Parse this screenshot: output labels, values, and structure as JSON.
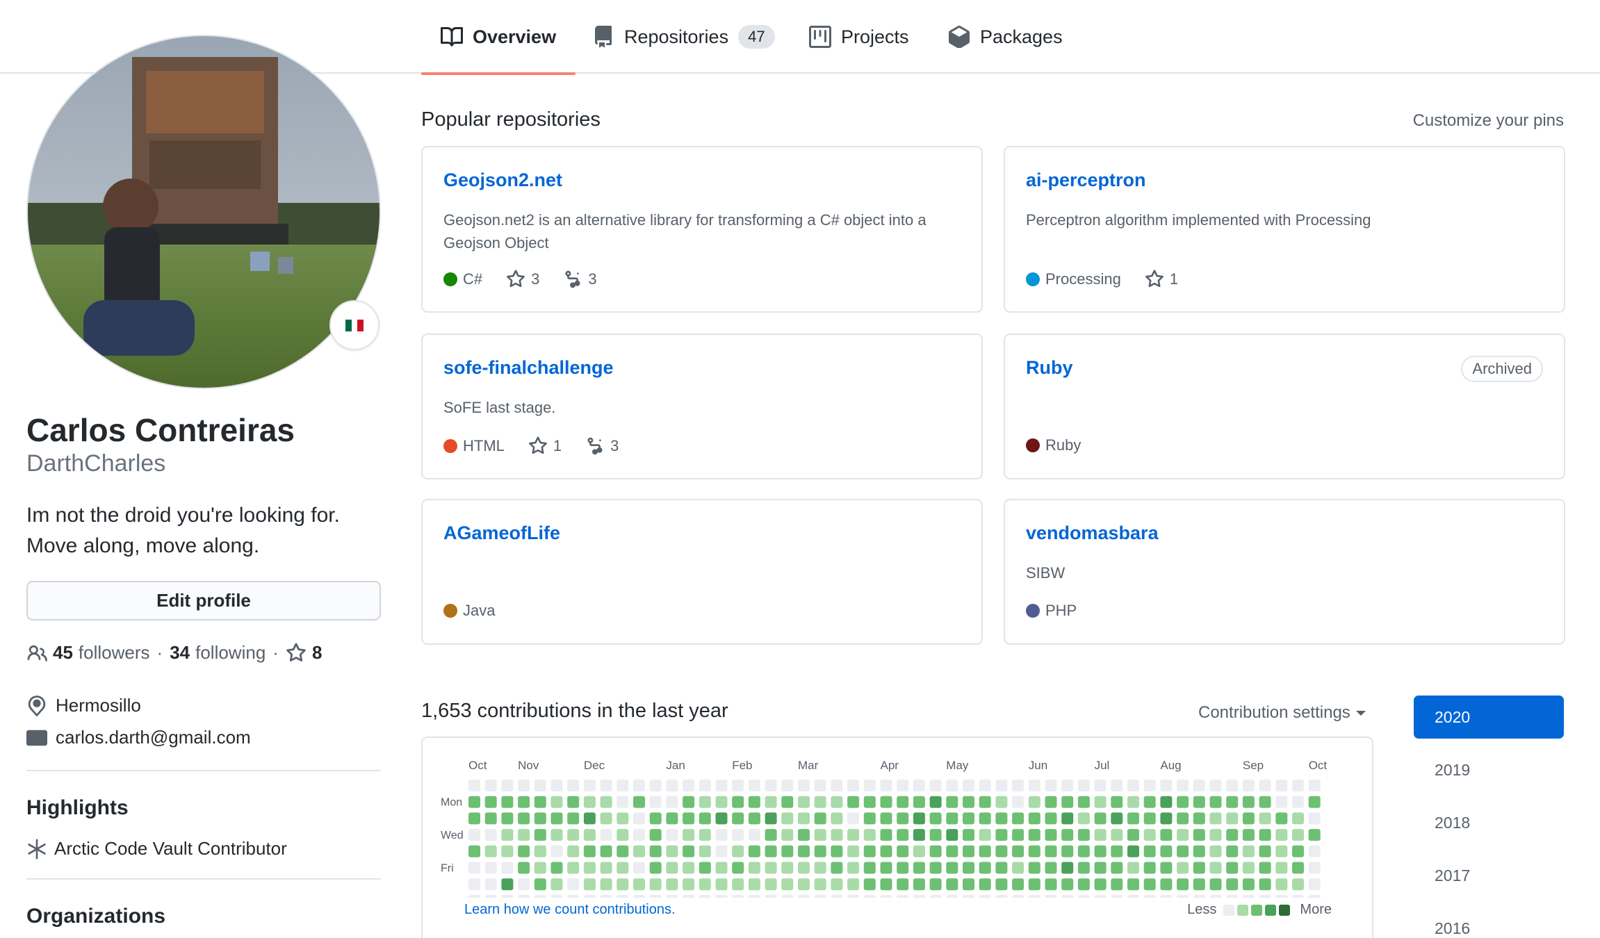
{
  "tabs": [
    {
      "label": "Overview",
      "icon": "book-icon",
      "selected": true
    },
    {
      "label": "Repositories",
      "icon": "repo-icon",
      "count": "47"
    },
    {
      "label": "Projects",
      "icon": "project-icon"
    },
    {
      "label": "Packages",
      "icon": "package-icon"
    }
  ],
  "profile": {
    "full_name": "Carlos Contreiras",
    "login": "DarthCharles",
    "bio_line1": "Im not the droid you're looking for.",
    "bio_line2": "Move along, move along.",
    "edit_label": "Edit profile",
    "followers_count": "45",
    "followers_label": "followers",
    "following_count": "34",
    "following_label": "following",
    "stars_count": "8",
    "location": "Hermosillo",
    "email": "carlos.darth@gmail.com",
    "highlights_heading": "Highlights",
    "highlight_item": "Arctic Code Vault Contributor",
    "organizations_heading": "Organizations",
    "flag_colors": [
      "#006847",
      "#ffffff",
      "#ce1126"
    ]
  },
  "popular": {
    "title": "Popular repositories",
    "customize_label": "Customize your pins",
    "repos": [
      {
        "name": "Geojson2.net",
        "description": "Geojson.net2 is an alternative library for transforming a C# object into a Geojson Object",
        "language": "C#",
        "lang_color": "#178600",
        "stars": "3",
        "forks": "3"
      },
      {
        "name": "ai-perceptron",
        "description": "Perceptron algorithm implemented with Processing",
        "language": "Processing",
        "lang_color": "#0096D8",
        "stars": "1"
      },
      {
        "name": "sofe-finalchallenge",
        "description": "SoFE last stage.",
        "language": "HTML",
        "lang_color": "#e34c26",
        "stars": "1",
        "forks": "3"
      },
      {
        "name": "Ruby",
        "badge": "Archived",
        "language": "Ruby",
        "lang_color": "#701516"
      },
      {
        "name": "AGameofLife",
        "language": "Java",
        "lang_color": "#b07219"
      },
      {
        "name": "vendomasbara",
        "description": "SIBW",
        "language": "PHP",
        "lang_color": "#4F5D95"
      }
    ]
  },
  "contributions": {
    "title": "1,653 contributions in the last year",
    "settings_label": "Contribution settings",
    "months": [
      "Oct",
      "Nov",
      "Dec",
      "Jan",
      "Feb",
      "Mar",
      "Apr",
      "May",
      "Jun",
      "Jul",
      "Aug",
      "Sep",
      "Oct"
    ],
    "day_labels": [
      "Mon",
      "Wed",
      "Fri"
    ],
    "learn_label": "Learn how we count contributions.",
    "less_label": "Less",
    "more_label": "More",
    "level_colors": [
      "#ebedf0",
      "#9be9a8",
      "#40c463",
      "#30a14e",
      "#216e39"
    ],
    "palette_in_screenshot": [
      "#ebedf0",
      "#a8dba8",
      "#6cc072",
      "#4aa159",
      "#2e6b37"
    ],
    "grid": [
      "0000000000000000000000000000000000000000000000000000",
      "2222212110200211221211122222322210122212123222222002",
      "2222222311022223223112102223222222223123223221121210",
      "0011211101020110002121111223232122222211212121222112",
      "2112101222121210122222212221222222222222322221212120",
      "0002121111021121211111212222222221223222122121212120",
      "0030210111111111111111112222222222222222222222222110",
      "0000000000000000000000000000000000000000000000000000"
    ],
    "years": [
      "2020",
      "2019",
      "2018",
      "2017",
      "2016"
    ],
    "active_year": "2020"
  }
}
